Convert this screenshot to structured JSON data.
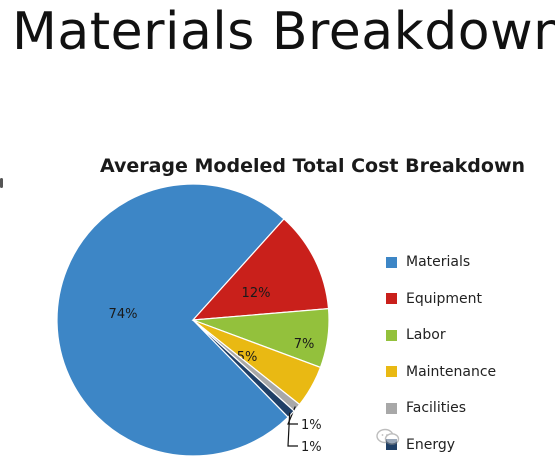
{
  "page": {
    "title": "Materials Breakdown"
  },
  "chart_data": {
    "type": "pie",
    "title": "Average Modeled Total Cost Breakdown",
    "categories": [
      "Materials",
      "Equipment",
      "Labor",
      "Maintenance",
      "Facilities",
      "Energy"
    ],
    "values": [
      74,
      12,
      7,
      5,
      1,
      1
    ],
    "labels": [
      "74%",
      "12%",
      "7%",
      "5%",
      "1%",
      "1%"
    ],
    "colors": [
      "#3d86c6",
      "#c9201b",
      "#93c13c",
      "#e9b913",
      "#a8a8a8",
      "#1f3f66"
    ],
    "legend": "right",
    "start_angle_deg": 48
  }
}
